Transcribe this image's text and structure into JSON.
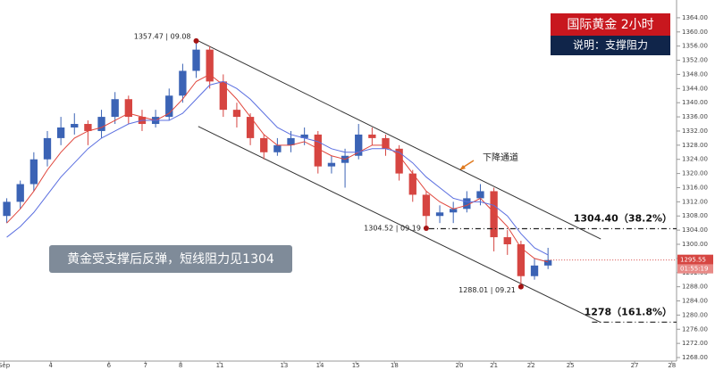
{
  "chart_data": {
    "type": "candlestick",
    "title": "国际黄金  2小时",
    "subtitle": "说明：支撑阻力",
    "caption": "黄金受支撑后反弹，短线阻力见1304",
    "channel_label": "下降通道",
    "up_color": "#3b63b5",
    "down_color": "#d64541",
    "xlim": [
      0,
      100
    ],
    "ylim": [
      1267,
      1366.5
    ],
    "x": [
      1,
      3,
      5,
      7,
      9,
      11,
      13,
      15,
      17,
      19,
      21,
      23,
      25,
      27,
      29,
      31,
      33,
      35,
      37,
      39,
      41,
      43,
      45,
      47,
      49,
      51,
      53,
      55,
      57,
      59,
      61,
      63,
      65,
      67,
      69,
      71,
      73,
      75,
      77,
      79,
      81
    ],
    "candles": [
      [
        1308,
        1313,
        1306,
        1312
      ],
      [
        1312,
        1318,
        1310,
        1317
      ],
      [
        1317,
        1326,
        1315,
        1324
      ],
      [
        1324,
        1332,
        1322,
        1330
      ],
      [
        1330,
        1336,
        1328,
        1333
      ],
      [
        1333,
        1337,
        1331,
        1334
      ],
      [
        1334,
        1335,
        1328,
        1332
      ],
      [
        1332,
        1338,
        1330,
        1336
      ],
      [
        1336,
        1343,
        1334,
        1341
      ],
      [
        1341,
        1342,
        1334,
        1336
      ],
      [
        1336,
        1338,
        1332,
        1334
      ],
      [
        1334,
        1338,
        1333,
        1336
      ],
      [
        1336,
        1344,
        1335,
        1342
      ],
      [
        1342,
        1351,
        1340,
        1349
      ],
      [
        1349,
        1357.47,
        1347,
        1355
      ],
      [
        1355,
        1356,
        1344,
        1346
      ],
      [
        1346,
        1348,
        1336,
        1338
      ],
      [
        1338,
        1340,
        1333,
        1336
      ],
      [
        1336,
        1337,
        1328,
        1330
      ],
      [
        1330,
        1331,
        1324,
        1326
      ],
      [
        1326,
        1330,
        1325,
        1328
      ],
      [
        1328,
        1332,
        1326,
        1330
      ],
      [
        1330,
        1333,
        1328,
        1331
      ],
      [
        1331,
        1332,
        1320,
        1322
      ],
      [
        1322,
        1325,
        1320,
        1323
      ],
      [
        1323,
        1327,
        1316,
        1325
      ],
      [
        1325,
        1334,
        1324,
        1331
      ],
      [
        1331,
        1333,
        1328,
        1330
      ],
      [
        1330,
        1331,
        1325,
        1327
      ],
      [
        1327,
        1328,
        1318,
        1320
      ],
      [
        1320,
        1321,
        1312,
        1314
      ],
      [
        1314,
        1315,
        1304.52,
        1308
      ],
      [
        1308,
        1311,
        1306,
        1309
      ],
      [
        1309,
        1312,
        1306,
        1310
      ],
      [
        1310,
        1315,
        1309,
        1313
      ],
      [
        1313,
        1317,
        1311,
        1315
      ],
      [
        1315,
        1316,
        1298,
        1302
      ],
      [
        1302,
        1304,
        1297,
        1300
      ],
      [
        1300,
        1301,
        1288.01,
        1291
      ],
      [
        1291,
        1296,
        1290,
        1294
      ],
      [
        1294,
        1299,
        1293,
        1295.55
      ]
    ],
    "series": [
      {
        "color": "#e0463c",
        "values": [
          1306,
          1310,
          1315,
          1321,
          1326,
          1330,
          1332,
          1333,
          1335,
          1337,
          1336,
          1335,
          1337,
          1341,
          1346,
          1348,
          1345,
          1341,
          1336,
          1331,
          1328,
          1328,
          1329,
          1327,
          1325,
          1324,
          1326,
          1328,
          1328,
          1325,
          1320,
          1315,
          1312,
          1310,
          1311,
          1313,
          1309,
          1305,
          1299,
          1296,
          1295
        ]
      },
      {
        "color": "#5b6fe0",
        "values": [
          1302,
          1305,
          1309,
          1314,
          1319,
          1323,
          1327,
          1330,
          1332,
          1334,
          1335,
          1335,
          1335,
          1337,
          1341,
          1345,
          1346,
          1344,
          1341,
          1337,
          1333,
          1331,
          1330,
          1329,
          1327,
          1326,
          1326,
          1327,
          1327,
          1326,
          1323,
          1319,
          1316,
          1313,
          1312,
          1312,
          1311,
          1308,
          1303,
          1299,
          1297
        ]
      }
    ],
    "channel": [
      {
        "x": [
          29.3,
          88.8
        ],
        "y": [
          1357.47,
          1301.5
        ]
      },
      {
        "x": [
          29.3,
          88.8
        ],
        "y": [
          1333.3,
          1277.9
        ]
      }
    ],
    "levels": [
      {
        "value": 1304.4,
        "from_x": 63.4,
        "label": "1304.40（38.2%）"
      },
      {
        "value": 1278,
        "from_x": 87.5,
        "label": "1278（161.8%）"
      }
    ],
    "point_labels": [
      {
        "x": 29,
        "y": 1357.47,
        "label": "1357.47 | 09.08"
      },
      {
        "x": 63,
        "y": 1304.52,
        "label": "1304.52 | 09.19"
      },
      {
        "x": 77,
        "y": 1288.01,
        "label": "1288.01 | 09.21"
      }
    ],
    "last_price": 1295.55,
    "countdown": "01:55:19",
    "xticks": [
      {
        "value": 0.6,
        "label": "Sep"
      },
      {
        "value": 7.5,
        "label": "4"
      },
      {
        "value": 16.1,
        "label": "6"
      },
      {
        "value": 21.5,
        "label": "7"
      },
      {
        "value": 26.7,
        "label": "8"
      },
      {
        "value": 32.5,
        "label": "11"
      },
      {
        "value": 42,
        "label": "13"
      },
      {
        "value": 47.3,
        "label": "14"
      },
      {
        "value": 52.6,
        "label": "15"
      },
      {
        "value": 58.3,
        "label": "18"
      },
      {
        "value": 67.9,
        "label": "20"
      },
      {
        "value": 73,
        "label": "21"
      },
      {
        "value": 78.5,
        "label": "22"
      },
      {
        "value": 84.3,
        "label": "25"
      },
      {
        "value": 93.8,
        "label": "27"
      },
      {
        "value": 99.3,
        "label": "28"
      }
    ],
    "yticks": [
      {
        "value": 1268,
        "label": "1268.00"
      },
      {
        "value": 1272,
        "label": "1272.00"
      },
      {
        "value": 1276,
        "label": "1276.00"
      },
      {
        "value": 1280,
        "label": "1280.00"
      },
      {
        "value": 1284,
        "label": "1284.00"
      },
      {
        "value": 1288,
        "label": "1288.00"
      },
      {
        "value": 1292,
        "label": "1292.00"
      },
      {
        "value": 1296,
        "label": "1296.00"
      },
      {
        "value": 1300,
        "label": "1300.00"
      },
      {
        "value": 1304,
        "label": "1304.00"
      },
      {
        "value": 1308,
        "label": "1308.00"
      },
      {
        "value": 1312,
        "label": "1312.00"
      },
      {
        "value": 1316,
        "label": "1316.00"
      },
      {
        "value": 1320,
        "label": "1320.00"
      },
      {
        "value": 1324,
        "label": "1324.00"
      },
      {
        "value": 1328,
        "label": "1328.00"
      },
      {
        "value": 1332,
        "label": "1332.00"
      },
      {
        "value": 1336,
        "label": "1336.00"
      },
      {
        "value": 1340,
        "label": "1340.00"
      },
      {
        "value": 1344,
        "label": "1344.00"
      },
      {
        "value": 1348,
        "label": "1348.00"
      },
      {
        "value": 1352,
        "label": "1352.00"
      },
      {
        "value": 1356,
        "label": "1356.00"
      },
      {
        "value": 1360,
        "label": "1360.00"
      },
      {
        "value": 1364,
        "label": "1364.00"
      }
    ]
  }
}
